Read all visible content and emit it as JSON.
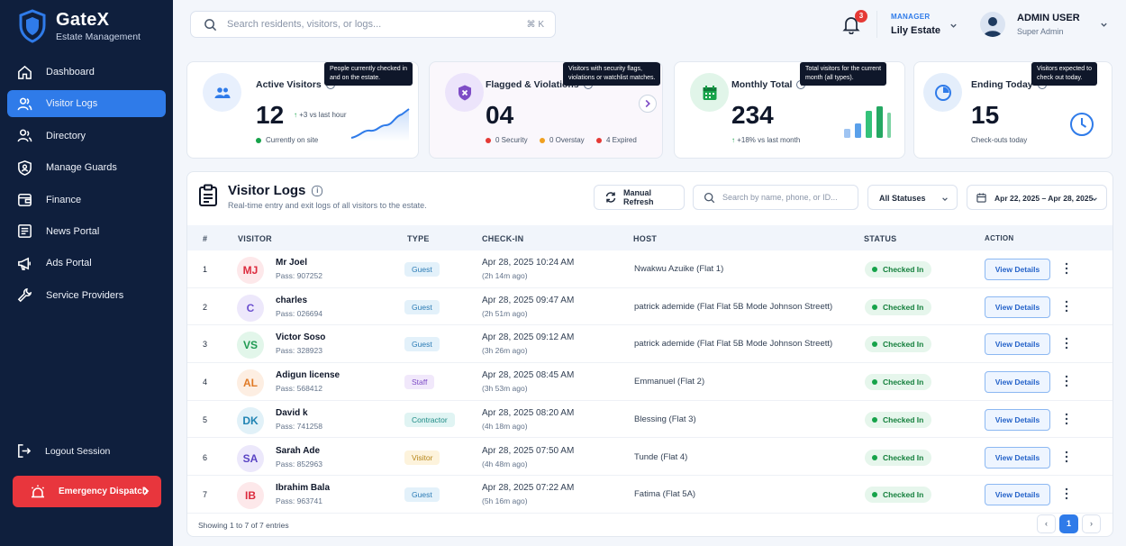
{
  "brand": {
    "name": "GateX",
    "subtitle": "Estate Management"
  },
  "nav": [
    {
      "label": "Dashboard",
      "icon": "home-icon"
    },
    {
      "label": "Visitor Logs",
      "icon": "users-icon",
      "active": true
    },
    {
      "label": "Directory",
      "icon": "directory-icon"
    },
    {
      "label": "Manage Guards",
      "icon": "shield-icon"
    },
    {
      "label": "Finance",
      "icon": "wallet-icon"
    },
    {
      "label": "News Portal",
      "icon": "newspaper-icon"
    },
    {
      "label": "Ads Portal",
      "icon": "megaphone-icon"
    },
    {
      "label": "Service Providers",
      "icon": "tools-icon"
    }
  ],
  "logout": "Logout Session",
  "emergency": "Emergency Dispatch",
  "search": {
    "placeholder": "Search residents, visitors, or logs...",
    "shortcut": "⌘ K"
  },
  "notifications": {
    "count": "3"
  },
  "role": {
    "label": "MANAGER",
    "estate": "Lily Estate"
  },
  "user": {
    "name": "ADMIN USER",
    "role": "Super Admin"
  },
  "stats": {
    "active": {
      "title": "Active Visitors",
      "value": "12",
      "trend": "+3 vs last hour",
      "legend": "Currently on site",
      "tooltip_1": "People currently checked in",
      "tooltip_2": "and on the estate."
    },
    "flagged": {
      "title": "Flagged & Violations",
      "value": "04",
      "security": "0 Security",
      "overstay": "0 Overstay",
      "expired": "4 Expired",
      "tooltip_1": "Visitors with security flags,",
      "tooltip_2": "violations or watchlist matches."
    },
    "monthly": {
      "title": "Monthly Total",
      "value": "234",
      "trend": "+18% vs last month",
      "tooltip_1": "Total visitors for the current",
      "tooltip_2": "month (all types)."
    },
    "ending": {
      "title": "Ending Today",
      "value": "15",
      "sub": "Check-outs today",
      "tooltip_1": "Visitors expected to",
      "tooltip_2": "check out today."
    }
  },
  "panel": {
    "title": "Visitor Logs",
    "subtitle": "Real-time entry and exit logs of all visitors to the estate.",
    "refresh": "Manual Refresh",
    "search_placeholder": "Search by name, phone, or ID...",
    "status_filter": "All Statuses",
    "date_range": "Apr 22, 2025 – Apr 28, 2025"
  },
  "columns": {
    "num": "#",
    "visitor": "VISITOR",
    "type": "TYPE",
    "checkin": "CHECK-IN",
    "host": "HOST",
    "status": "STATUS",
    "action": "ACTION"
  },
  "rows": [
    {
      "num": "1",
      "initials": "MJ",
      "name": "Mr Joel",
      "pass": "Pass: 907252",
      "type": "Guest",
      "checkin": "Apr 28, 2025 10:24 AM",
      "ago": "(2h 14m ago)",
      "host": "Nwakwu Azuike (Flat 1)",
      "status": "Checked In",
      "action": "View Details",
      "avatar_bg": "#fde8ea",
      "avatar_fg": "#dc2b3e",
      "type_bg": "#e3f1fa",
      "type_fg": "#2b7bb5"
    },
    {
      "num": "2",
      "initials": "C",
      "name": "charles",
      "pass": "Pass: 026694",
      "type": "Guest",
      "checkin": "Apr 28, 2025 09:47 AM",
      "ago": "(2h 51m ago)",
      "host": "patrick ademide (Flat Flat 5B Mode Johnson Streett)",
      "status": "Checked In",
      "action": "View Details",
      "avatar_bg": "#ede8fb",
      "avatar_fg": "#6b4fcf",
      "type_bg": "#e3f1fa",
      "type_fg": "#2b7bb5"
    },
    {
      "num": "3",
      "initials": "VS",
      "name": "Victor Soso",
      "pass": "Pass: 328923",
      "type": "Guest",
      "checkin": "Apr 28, 2025 09:12 AM",
      "ago": "(3h 26m ago)",
      "host": "patrick ademide (Flat Flat 5B Mode Johnson Streett)",
      "status": "Checked In",
      "action": "View Details",
      "avatar_bg": "#e2f6ea",
      "avatar_fg": "#1f9a52",
      "type_bg": "#e3f1fa",
      "type_fg": "#2b7bb5"
    },
    {
      "num": "4",
      "initials": "AL",
      "name": "Adigun license",
      "pass": "Pass: 568412",
      "type": "Staff",
      "checkin": "Apr 28, 2025 08:45 AM",
      "ago": "(3h 53m ago)",
      "host": "Emmanuel (Flat 2)",
      "status": "Checked In",
      "action": "View Details",
      "avatar_bg": "#fdeee2",
      "avatar_fg": "#e07a26",
      "type_bg": "#f1e8fb",
      "type_fg": "#7e4cc6"
    },
    {
      "num": "5",
      "initials": "DK",
      "name": "David k",
      "pass": "Pass: 741258",
      "type": "Contractor",
      "checkin": "Apr 28, 2025 08:20 AM",
      "ago": "(4h 18m ago)",
      "host": "Blessing (Flat 3)",
      "status": "Checked In",
      "action": "View Details",
      "avatar_bg": "#e1f1f8",
      "avatar_fg": "#1f83b3",
      "type_bg": "#e0f4f3",
      "type_fg": "#1d8a85"
    },
    {
      "num": "6",
      "initials": "SA",
      "name": "Sarah Ade",
      "pass": "Pass: 852963",
      "type": "Visitor",
      "checkin": "Apr 28, 2025 07:50 AM",
      "ago": "(4h 48m ago)",
      "host": "Tunde (Flat 4)",
      "status": "Checked In",
      "action": "View Details",
      "avatar_bg": "#ece8fb",
      "avatar_fg": "#5a44c4",
      "type_bg": "#fdf3dc",
      "type_fg": "#b7861a"
    },
    {
      "num": "7",
      "initials": "IB",
      "name": "Ibrahim Bala",
      "pass": "Pass: 963741",
      "type": "Guest",
      "checkin": "Apr 28, 2025 07:22 AM",
      "ago": "(5h 16m ago)",
      "host": "Fatima (Flat 5A)",
      "status": "Checked In",
      "action": "View Details",
      "avatar_bg": "#fde8ea",
      "avatar_fg": "#dc2b3e",
      "type_bg": "#e3f1fa",
      "type_fg": "#2b7bb5"
    }
  ],
  "footer": {
    "showing": "Showing 1 to 7 of 7 entries",
    "page": "1",
    "prev": "‹",
    "next": "›"
  },
  "colors": {
    "primary": "#2f7be9",
    "sidebar": "#0f1f3d",
    "danger": "#e8363d",
    "success": "#16a34a"
  }
}
